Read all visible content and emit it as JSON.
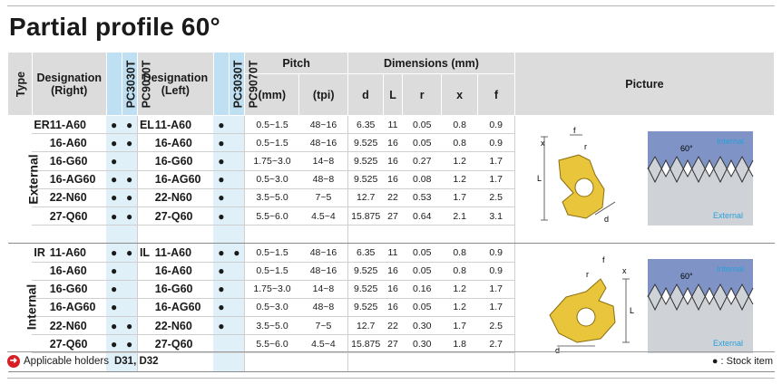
{
  "title": "Partial profile 60°",
  "headers": {
    "type": "Type",
    "designation_right": [
      "Designation",
      "(Right)"
    ],
    "designation_left": [
      "Designation",
      "(Left)"
    ],
    "grade1": "PC3030T",
    "grade2": "PC9070T",
    "pitch": "Pitch",
    "pitch_mm": "(mm)",
    "pitch_tpi": "(tpi)",
    "dimensions": "Dimensions (mm)",
    "d": "d",
    "L": "L",
    "r": "r",
    "x": "x",
    "f": "f",
    "picture": "Picture"
  },
  "groups": [
    {
      "type": "External",
      "right_prefix": "ER",
      "left_prefix": "EL",
      "rows": [
        {
          "right": "11-A60",
          "r1": "●",
          "r2": "●",
          "left": "11-A60",
          "l1": "●",
          "l2": "",
          "pmm": "0.5~1.5",
          "tpi": "48~16",
          "d": "6.35",
          "L": "11",
          "r": "0.05",
          "x": "0.8",
          "f": "0.9"
        },
        {
          "right": "16-A60",
          "r1": "●",
          "r2": "●",
          "left": "16-A60",
          "l1": "●",
          "l2": "",
          "pmm": "0.5~1.5",
          "tpi": "48~16",
          "d": "9.525",
          "L": "16",
          "r": "0.05",
          "x": "0.8",
          "f": "0.9"
        },
        {
          "right": "16-G60",
          "r1": "●",
          "r2": "",
          "left": "16-G60",
          "l1": "●",
          "l2": "",
          "pmm": "1.75~3.0",
          "tpi": "14~8",
          "d": "9.525",
          "L": "16",
          "r": "0.27",
          "x": "1.2",
          "f": "1.7"
        },
        {
          "right": "16-AG60",
          "r1": "●",
          "r2": "●",
          "left": "16-AG60",
          "l1": "●",
          "l2": "",
          "pmm": "0.5~3.0",
          "tpi": "48~8",
          "d": "9.525",
          "L": "16",
          "r": "0.08",
          "x": "1.2",
          "f": "1.7"
        },
        {
          "right": "22-N60",
          "r1": "●",
          "r2": "●",
          "left": "22-N60",
          "l1": "●",
          "l2": "",
          "pmm": "3.5~5.0",
          "tpi": "7~5",
          "d": "12.7",
          "L": "22",
          "r": "0.53",
          "x": "1.7",
          "f": "2.5"
        },
        {
          "right": "27-Q60",
          "r1": "●",
          "r2": "●",
          "left": "27-Q60",
          "l1": "●",
          "l2": "",
          "pmm": "5.5~6.0",
          "tpi": "4.5~4",
          "d": "15.875",
          "L": "27",
          "r": "0.64",
          "x": "2.1",
          "f": "3.1"
        }
      ]
    },
    {
      "type": "Internal",
      "right_prefix": "IR",
      "left_prefix": "IL",
      "rows": [
        {
          "right": "11-A60",
          "r1": "●",
          "r2": "●",
          "left": "11-A60",
          "l1": "●",
          "l2": "●",
          "pmm": "0.5~1.5",
          "tpi": "48~16",
          "d": "6.35",
          "L": "11",
          "r": "0.05",
          "x": "0.8",
          "f": "0.9"
        },
        {
          "right": "16-A60",
          "r1": "●",
          "r2": "",
          "left": "16-A60",
          "l1": "●",
          "l2": "",
          "pmm": "0.5~1.5",
          "tpi": "48~16",
          "d": "9.525",
          "L": "16",
          "r": "0.05",
          "x": "0.8",
          "f": "0.9"
        },
        {
          "right": "16-G60",
          "r1": "●",
          "r2": "",
          "left": "16-G60",
          "l1": "●",
          "l2": "",
          "pmm": "1.75~3.0",
          "tpi": "14~8",
          "d": "9.525",
          "L": "16",
          "r": "0.16",
          "x": "1.2",
          "f": "1.7"
        },
        {
          "right": "16-AG60",
          "r1": "●",
          "r2": "",
          "left": "16-AG60",
          "l1": "●",
          "l2": "",
          "pmm": "0.5~3.0",
          "tpi": "48~8",
          "d": "9.525",
          "L": "16",
          "r": "0.05",
          "x": "1.2",
          "f": "1.7"
        },
        {
          "right": "22-N60",
          "r1": "●",
          "r2": "●",
          "left": "22-N60",
          "l1": "●",
          "l2": "",
          "pmm": "3.5~5.0",
          "tpi": "7~5",
          "d": "12.7",
          "L": "22",
          "r": "0.30",
          "x": "1.7",
          "f": "2.5"
        },
        {
          "right": "27-Q60",
          "r1": "●",
          "r2": "●",
          "left": "27-Q60",
          "l1": "",
          "l2": "",
          "pmm": "5.5~6.0",
          "tpi": "4.5~4",
          "d": "15.875",
          "L": "27",
          "r": "0.30",
          "x": "1.8",
          "f": "2.7"
        }
      ]
    }
  ],
  "figures": {
    "external": {
      "angle": "60°",
      "top_label": "Internal",
      "bottom_label": "External",
      "dims": [
        "f",
        "x",
        "r",
        "L",
        "d"
      ]
    },
    "internal": {
      "angle": "60°",
      "top_label": "Internal",
      "bottom_label": "External",
      "dims": [
        "f",
        "x",
        "r",
        "L",
        "d"
      ]
    }
  },
  "footer": {
    "text": "Applicable holders",
    "holders": "D31, D32",
    "legend": "● : Stock item"
  },
  "colors": {
    "grade_header": "#bfe0f2",
    "grade_cell": "#dff0f9",
    "header_gray": "#dcdcdc",
    "insert_gold": "#e8c53a",
    "profile_blue": "#7f93c6",
    "profile_gray": "#cfd3d8",
    "label_blue": "#2a9fd8"
  }
}
